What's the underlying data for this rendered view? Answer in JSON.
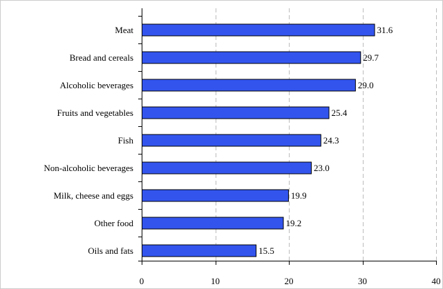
{
  "chart_data": {
    "type": "bar",
    "orientation": "horizontal",
    "categories": [
      "Meat",
      "Bread and cereals",
      "Alcoholic beverages",
      "Fruits and vegetables",
      "Fish",
      "Non-alcoholic beverages",
      "Milk, cheese and eggs",
      "Other food",
      "Oils and fats"
    ],
    "values": [
      31.6,
      29.7,
      29.0,
      25.4,
      24.3,
      23.0,
      19.9,
      19.2,
      15.5
    ],
    "value_labels": [
      "31.6",
      "29.7",
      "29.0",
      "25.4",
      "24.3",
      "23.0",
      "19.9",
      "19.2",
      "15.5"
    ],
    "xlim": [
      0,
      40
    ],
    "xticks": [
      0,
      10,
      20,
      30,
      40
    ],
    "xtick_labels": [
      "0",
      "10",
      "20",
      "30",
      "40"
    ],
    "grid": "vertical dashed",
    "title": "",
    "xlabel": "",
    "ylabel": "",
    "colors": {
      "bar_fill": "#3355ee",
      "bar_stroke": "#000000",
      "grid": "#bbbbbb",
      "frame": "#cccccc"
    }
  }
}
